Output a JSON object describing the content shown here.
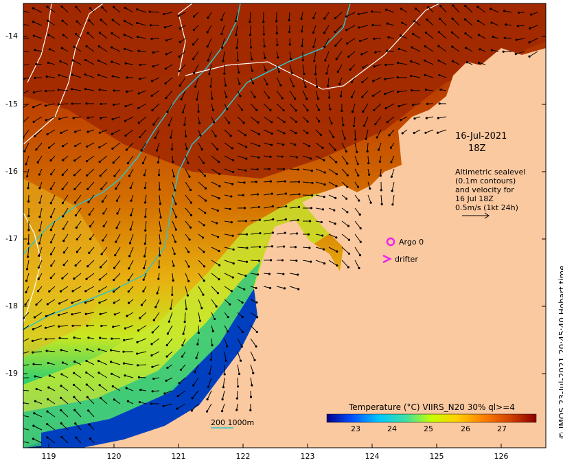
{
  "map": {
    "lat_ticks": [
      "-14",
      "-15",
      "-16",
      "-17",
      "-18",
      "-19"
    ],
    "lon_ticks": [
      "119",
      "120",
      "121",
      "122",
      "123",
      "124",
      "125",
      "126"
    ],
    "land_color": "#fbc9a0",
    "contour_line_color": "#ffffff",
    "isobath_color": "#2ec4c8"
  },
  "annotations": {
    "date_line1": "16-Jul-2021",
    "date_line2": "18Z",
    "altimetric": [
      "Altimetric sealevel",
      "(0.1m contours)",
      "and velocity for",
      "16 Jul 18Z",
      "0.5m/s (1kt 24h)"
    ],
    "argo_label": "Argo 0",
    "drifter_label": "drifter",
    "marker_color": "#ee22ee",
    "scale_label": "200  1000m"
  },
  "legend": {
    "title": "Temperature (°C) VIIRS_N20 30% ql>=4",
    "ticks": [
      "23",
      "24",
      "25",
      "26",
      "27"
    ],
    "colors": [
      "#00008b",
      "#0050ff",
      "#00c8ff",
      "#40e0a0",
      "#c8ff00",
      "#ffd000",
      "#ff8000",
      "#d04000",
      "#8b0000"
    ]
  },
  "credit": "© IMOS 23-Jul-2021 20:45:40 Hobart time"
}
